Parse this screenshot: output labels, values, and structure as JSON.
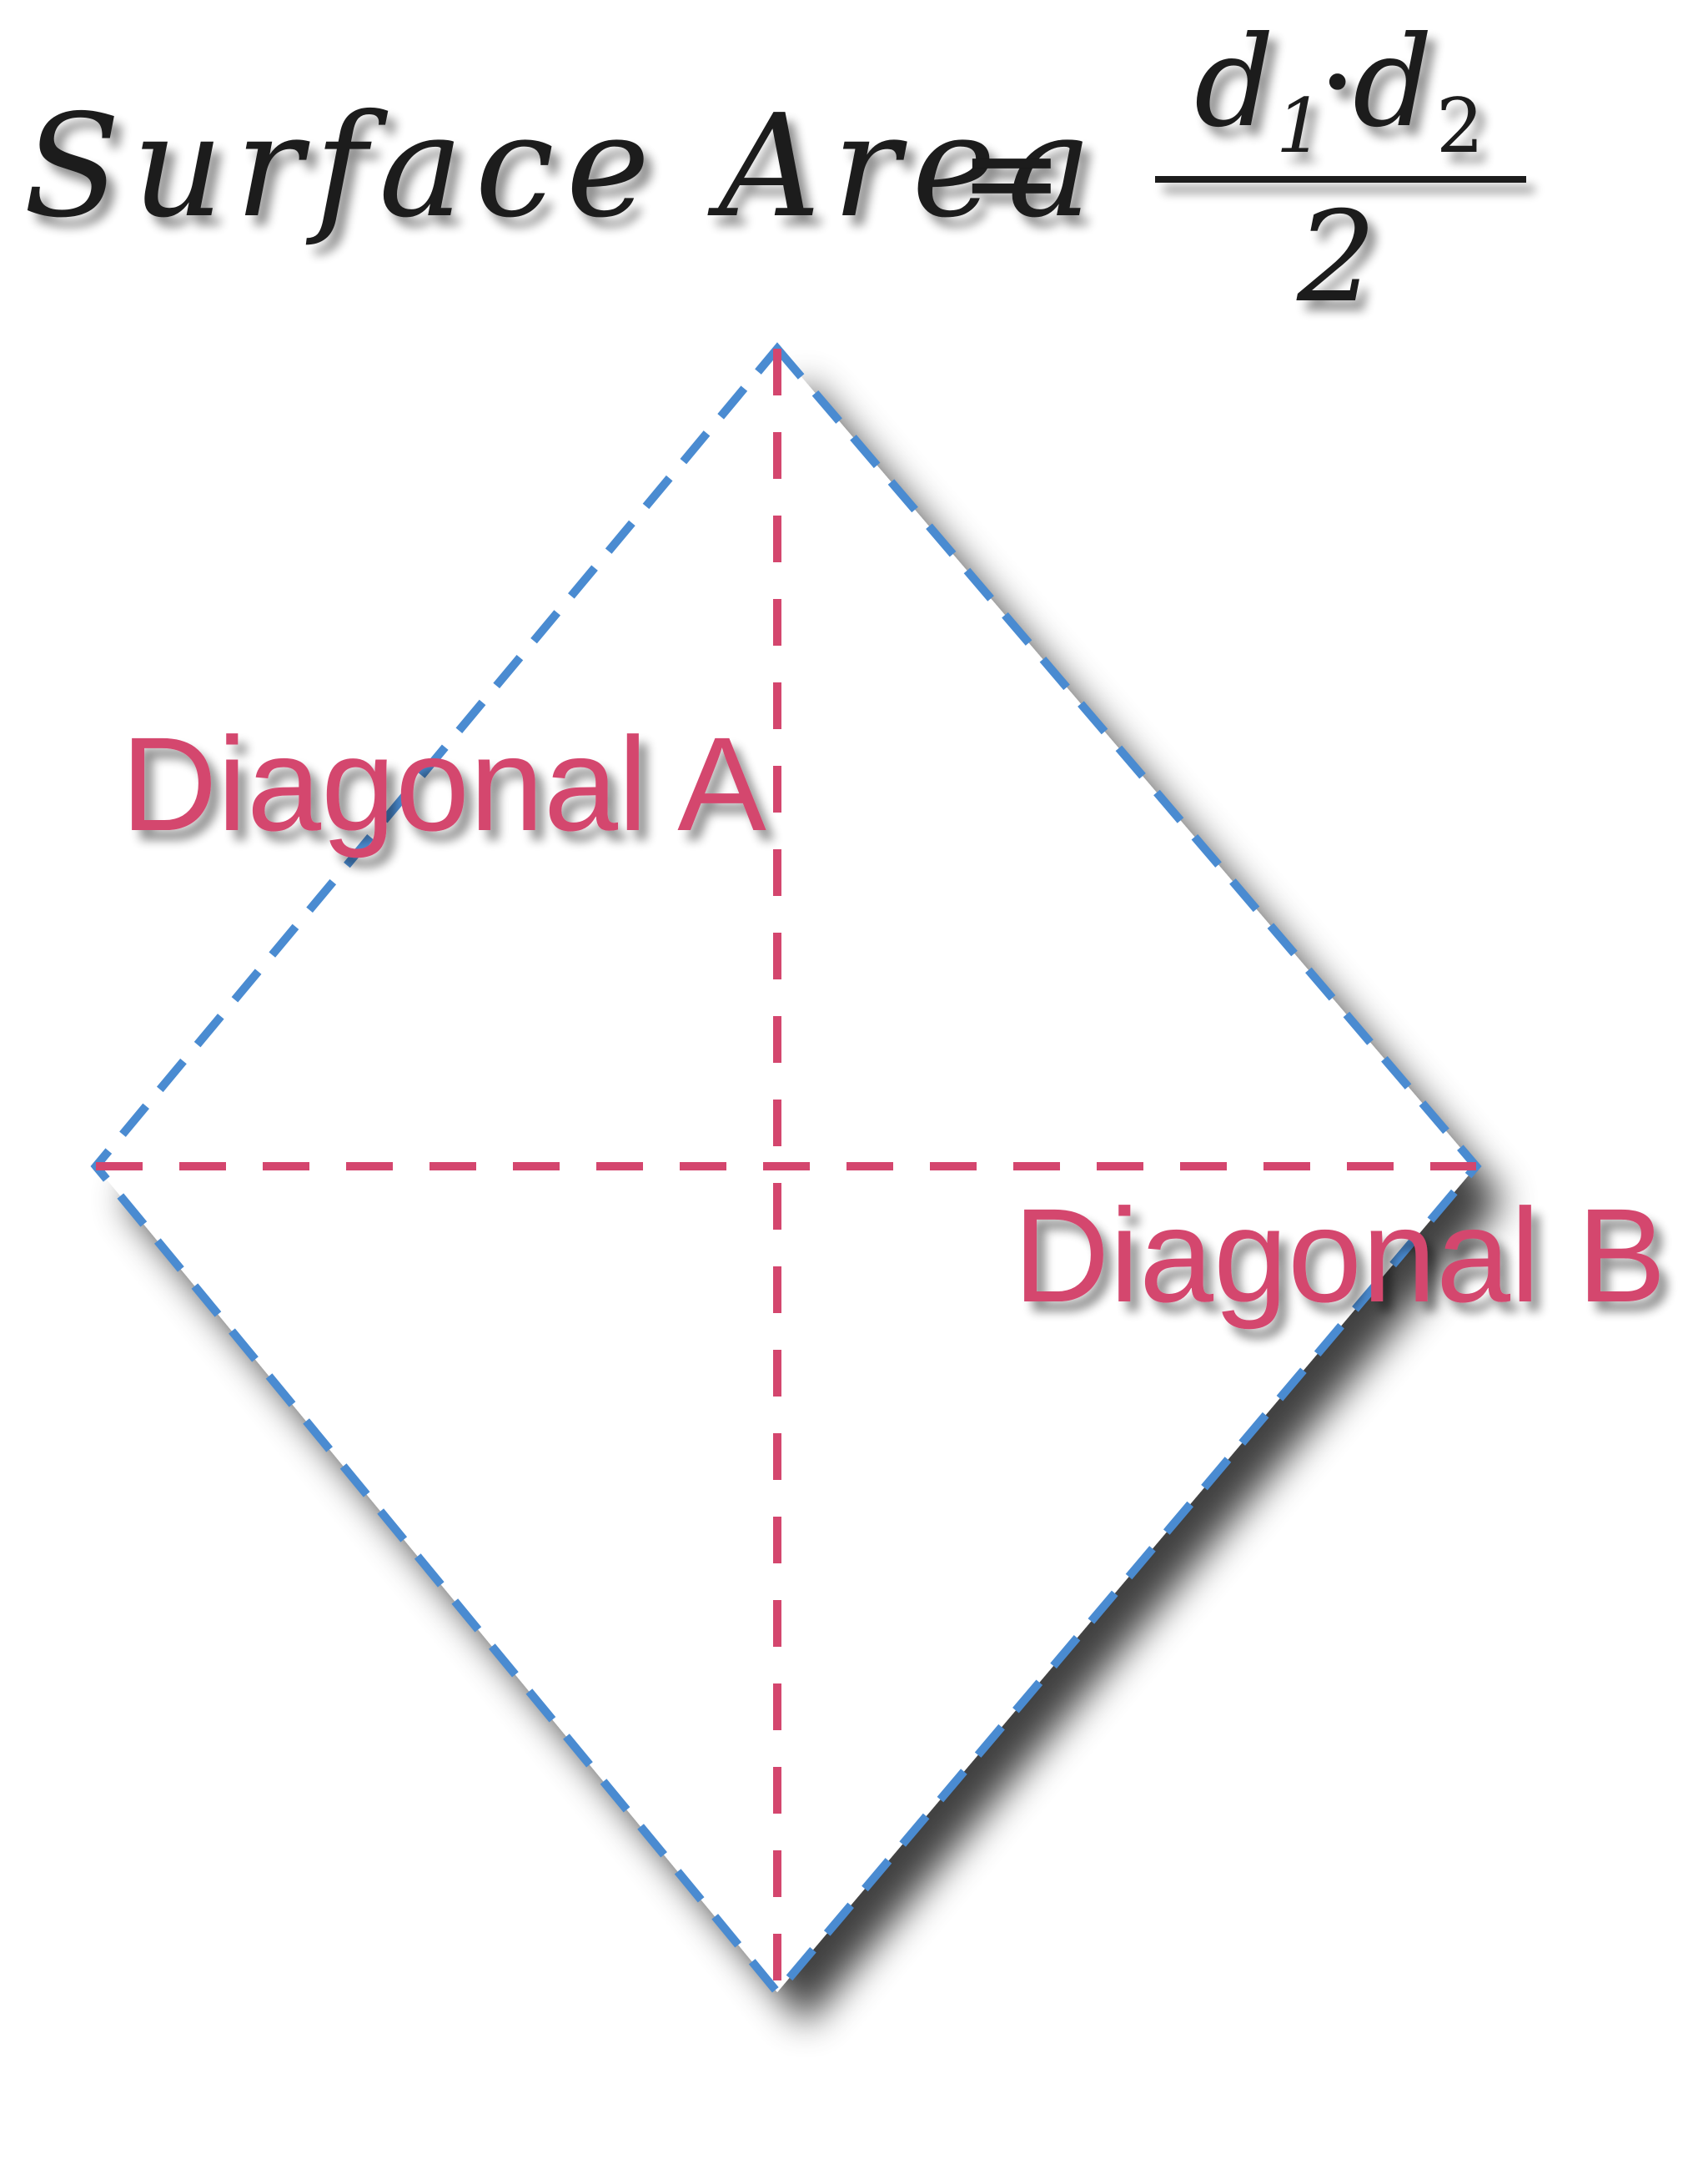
{
  "formula": {
    "lhs": "Surface Area",
    "equals": "=",
    "numerator_d1": "d",
    "numerator_sub1": "1",
    "numerator_dot": "·",
    "numerator_d2": "d",
    "numerator_sub2": "2",
    "denominator": "2"
  },
  "labels": {
    "diagonal_a": "Diagonal A",
    "diagonal_b": "Diagonal B"
  },
  "colors": {
    "outline": "#4a8bd1",
    "diagonal": "#d4466e",
    "text": "#1a1a1a",
    "background": "#ffffff"
  }
}
